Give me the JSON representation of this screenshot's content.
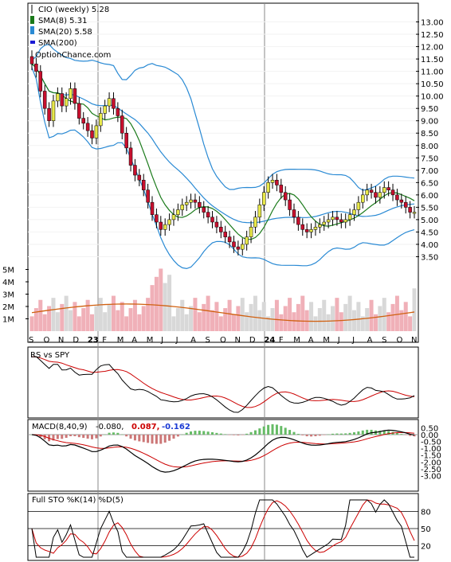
{
  "chart_data": {
    "type": "stock-chart",
    "legend": {
      "title": "CIO (weekly) 5.28",
      "sma8": "SMA(8) 5.31",
      "sma20": "SMA(20) 5.58",
      "sma200": "SMA(200)",
      "source": "OptionChance.com"
    },
    "price_axis": {
      "ticks": [
        "13.00",
        "12.50",
        "12.00",
        "11.50",
        "11.00",
        "10.50",
        "10.00",
        "9.50",
        "9.00",
        "8.50",
        "8.00",
        "7.50",
        "7.00",
        "6.50",
        "6.00",
        "5.50",
        "5.00",
        "4.50",
        "4.00",
        "3.50"
      ],
      "ylim": [
        3.0,
        13.5
      ]
    },
    "volume_axis": {
      "ticks": [
        "5M",
        "4M",
        "3M",
        "2M",
        "1M"
      ]
    },
    "months": [
      "S",
      "O",
      "N",
      "D",
      "23",
      "F",
      "M",
      "A",
      "M",
      "J",
      "J",
      "A",
      "S",
      "O",
      "N",
      "D",
      "24",
      "F",
      "M",
      "A",
      "M",
      "J",
      "J",
      "A",
      "S",
      "O",
      "N"
    ],
    "close": [
      11.3,
      11.0,
      10.2,
      9.5,
      9.0,
      9.8,
      10.1,
      9.6,
      9.9,
      10.3,
      9.7,
      9.1,
      8.9,
      8.6,
      8.3,
      8.8,
      9.3,
      9.6,
      9.9,
      9.5,
      9.2,
      8.5,
      7.9,
      7.2,
      6.8,
      6.6,
      6.2,
      5.7,
      5.2,
      4.9,
      4.6,
      4.8,
      5.0,
      5.2,
      5.4,
      5.6,
      5.7,
      5.8,
      5.7,
      5.5,
      5.3,
      5.1,
      4.9,
      4.7,
      4.5,
      4.3,
      4.1,
      3.9,
      3.8,
      4.0,
      4.3,
      4.7,
      5.1,
      5.6,
      6.1,
      6.5,
      6.6,
      6.4,
      6.1,
      5.8,
      5.4,
      5.1,
      4.8,
      4.6,
      4.5,
      4.6,
      4.7,
      4.8,
      4.9,
      5.0,
      5.1,
      5.0,
      4.9,
      5.0,
      5.2,
      5.4,
      5.7,
      6.0,
      6.2,
      6.1,
      5.9,
      6.1,
      6.3,
      6.2,
      6.0,
      5.8,
      5.7,
      5.5,
      5.3,
      5.3
    ],
    "rs_vs_spy": {
      "title": "RS vs SPY"
    },
    "macd": {
      "title": "MACD(8,40,9)",
      "value": "-0.080,",
      "value2": "0.087,",
      "value3": "-0.162",
      "ticks": [
        "0.50",
        "0.00",
        "-0.50",
        "-1.00",
        "-1.50",
        "-2.00",
        "-2.50",
        "-3.00"
      ]
    },
    "sto": {
      "title": "Full STO %K(14) %D(5)",
      "ticks": [
        "80",
        "50",
        "20"
      ]
    }
  },
  "colors": {
    "up": "#e8e84a",
    "down": "#c8102e",
    "sma8": "#1a7a1a",
    "sma20": "#2a8ad4",
    "sma200": "#1a1ad4",
    "bb": "#2a8ad4",
    "vol_up": "#d8d8d8",
    "vol_down": "#f0b0b8",
    "volavg": "#d06010",
    "red": "#cc0000",
    "blue": "#1a3ad4"
  }
}
